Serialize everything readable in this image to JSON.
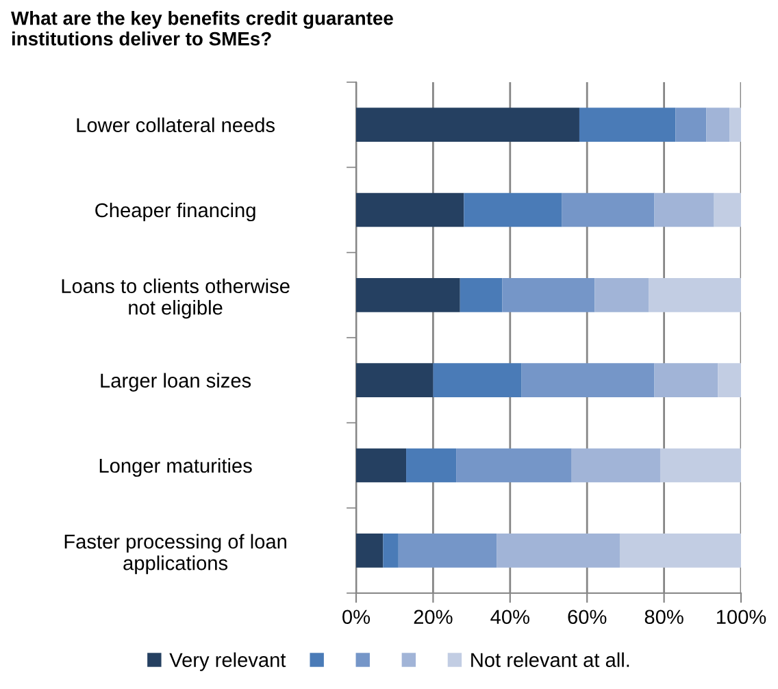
{
  "chart_data": {
    "type": "bar",
    "orientation": "horizontal",
    "stacked": true,
    "title": "What are the key benefits credit guarantee\ninstitutions deliver to SMEs?",
    "categories": [
      "Lower collateral needs",
      "Cheaper financing",
      "Loans to clients otherwise\nnot eligible",
      "Larger loan sizes",
      "Longer maturities",
      "Faster processing of loan\napplications"
    ],
    "series": [
      {
        "name": "Very relevant",
        "color": "#254061",
        "values": [
          58,
          28,
          27,
          20,
          13,
          7
        ]
      },
      {
        "name": null,
        "color": "#4a7bb7",
        "values": [
          25,
          25.5,
          11,
          23,
          13,
          4
        ]
      },
      {
        "name": null,
        "color": "#7596c8",
        "values": [
          8,
          24,
          24,
          34.5,
          30,
          25.5
        ]
      },
      {
        "name": null,
        "color": "#a1b4d7",
        "values": [
          6,
          15.5,
          14,
          16.5,
          23,
          32
        ]
      },
      {
        "name": "Not relevant at all.",
        "color": "#c2cde3",
        "values": [
          3,
          7,
          24,
          6,
          21,
          31.5
        ]
      }
    ],
    "xlim": [
      0,
      100
    ],
    "xticks": [
      {
        "value": 0,
        "label": "0%"
      },
      {
        "value": 20,
        "label": "20%"
      },
      {
        "value": 40,
        "label": "40%"
      },
      {
        "value": 60,
        "label": "60%"
      },
      {
        "value": 80,
        "label": "80%"
      },
      {
        "value": 100,
        "label": "100%"
      }
    ],
    "grid": "x",
    "legend": "bottom"
  }
}
